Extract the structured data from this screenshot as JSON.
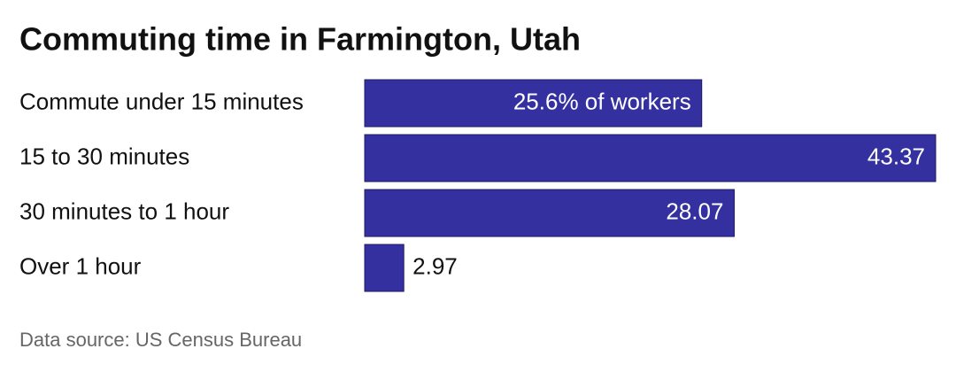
{
  "chart_data": {
    "type": "bar",
    "orientation": "horizontal",
    "title": "Commuting time in Farmington, Utah",
    "categories": [
      "Commute under 15 minutes",
      "15 to 30 minutes",
      "30 minutes to 1 hour",
      "Over 1 hour"
    ],
    "values": [
      25.6,
      43.37,
      28.07,
      2.97
    ],
    "value_labels": [
      "25.6% of workers",
      "43.37",
      "28.07",
      "2.97"
    ],
    "color": "#3430a0",
    "source": "Data source: US Census Bureau"
  }
}
